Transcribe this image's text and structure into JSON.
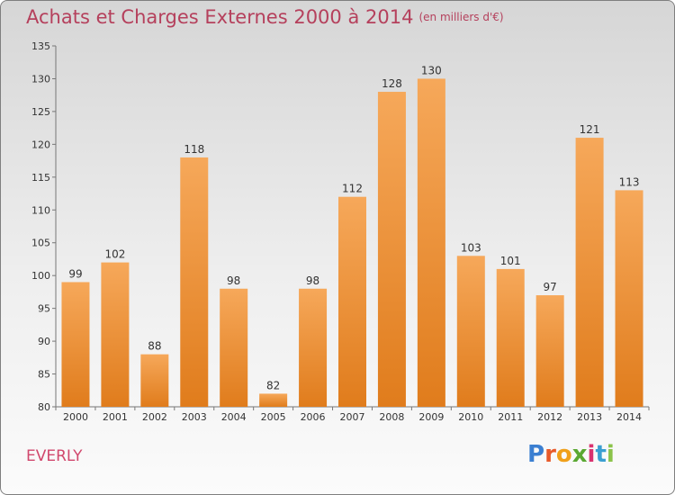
{
  "header": {
    "title": "Achats et Charges Externes 2000 à 2014",
    "subtitle": "(en milliers d'€)"
  },
  "footer": {
    "place": "EVERLY",
    "logo": "Proxiti"
  },
  "colors": {
    "title": "#b5405c",
    "bar_top": "#f6a85a",
    "bar_bottom": "#e07c1c"
  },
  "chart_data": {
    "type": "bar",
    "categories": [
      "2000",
      "2001",
      "2002",
      "2003",
      "2004",
      "2005",
      "2006",
      "2007",
      "2008",
      "2009",
      "2010",
      "2011",
      "2012",
      "2013",
      "2014"
    ],
    "values": [
      99,
      102,
      88,
      118,
      98,
      82,
      98,
      112,
      128,
      130,
      103,
      101,
      97,
      121,
      113
    ],
    "ylim": [
      80,
      135
    ],
    "yticks": [
      80,
      85,
      90,
      95,
      100,
      105,
      110,
      115,
      120,
      125,
      130,
      135
    ],
    "grid": false,
    "data_labels": true
  }
}
